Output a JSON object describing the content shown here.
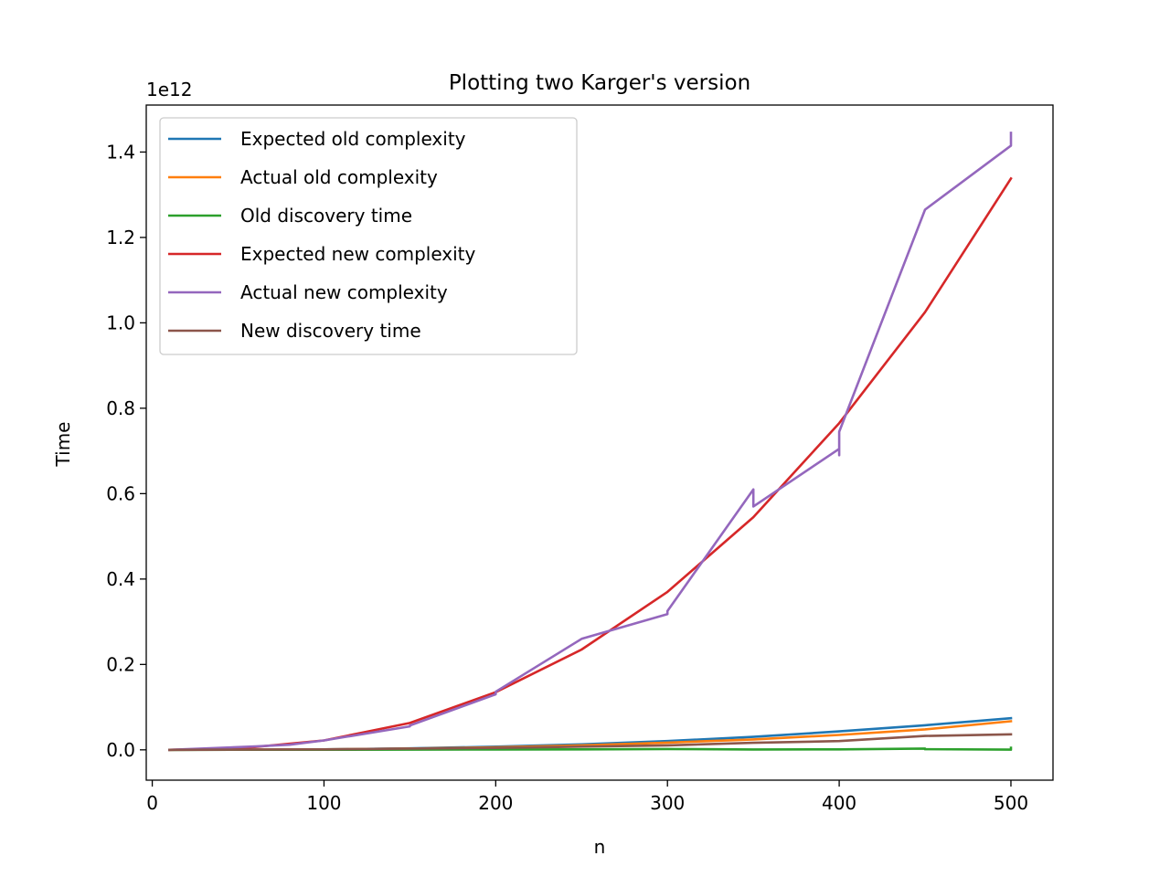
{
  "chart_data": {
    "type": "line",
    "title": "Plotting two Karger's version",
    "xlabel": "n",
    "ylabel": "Time",
    "y_offset_label": "1e12",
    "xlim": [
      -3.5,
      524.5
    ],
    "ylim": [
      -0.071,
      1.51
    ],
    "xticks": [
      0,
      100,
      200,
      300,
      400,
      500
    ],
    "yticks": [
      0.0,
      0.2,
      0.4,
      0.6,
      0.8,
      1.0,
      1.2,
      1.4
    ],
    "xtick_labels": [
      "0",
      "100",
      "200",
      "300",
      "400",
      "500"
    ],
    "ytick_labels": [
      "0.0",
      "0.2",
      "0.4",
      "0.6",
      "0.8",
      "1.0",
      "1.2",
      "1.4"
    ],
    "grid": false,
    "legend_position": "upper-left",
    "series": [
      {
        "name": "Expected old complexity",
        "color": "#1f77b4",
        "points": [
          [
            10,
            0.0
          ],
          [
            50,
            0.0002
          ],
          [
            100,
            0.001
          ],
          [
            150,
            0.0035
          ],
          [
            200,
            0.0075
          ],
          [
            250,
            0.0128
          ],
          [
            300,
            0.0205
          ],
          [
            350,
            0.0305
          ],
          [
            400,
            0.0432
          ],
          [
            450,
            0.0575
          ],
          [
            500,
            0.074
          ]
        ]
      },
      {
        "name": "Actual old complexity",
        "color": "#ff7f0e",
        "points": [
          [
            10,
            0.0
          ],
          [
            50,
            0.0002
          ],
          [
            100,
            0.001
          ],
          [
            150,
            0.003
          ],
          [
            200,
            0.006
          ],
          [
            250,
            0.0105
          ],
          [
            300,
            0.017
          ],
          [
            350,
            0.0245
          ],
          [
            400,
            0.035
          ],
          [
            450,
            0.048
          ],
          [
            500,
            0.067
          ]
        ]
      },
      {
        "name": "Old discovery time",
        "color": "#2ca02c",
        "points": [
          [
            10,
            0.0
          ],
          [
            100,
            0.0002
          ],
          [
            200,
            0.0008
          ],
          [
            250,
            0.0012
          ],
          [
            300,
            0.002
          ],
          [
            350,
            0.0008
          ],
          [
            400,
            0.0012
          ],
          [
            450,
            0.003
          ],
          [
            450,
            0.0015
          ],
          [
            500,
            0.0005
          ],
          [
            500,
            0.005
          ]
        ]
      },
      {
        "name": "Expected new complexity",
        "color": "#d62728",
        "points": [
          [
            10,
            0.0
          ],
          [
            50,
            0.003
          ],
          [
            100,
            0.022
          ],
          [
            150,
            0.063
          ],
          [
            200,
            0.135
          ],
          [
            250,
            0.235
          ],
          [
            300,
            0.37
          ],
          [
            350,
            0.545
          ],
          [
            400,
            0.765
          ],
          [
            450,
            1.025
          ],
          [
            500,
            1.338
          ]
        ]
      },
      {
        "name": "Actual new complexity",
        "color": "#9467bd",
        "points": [
          [
            10,
            0.0
          ],
          [
            60,
            0.008
          ],
          [
            80,
            0.012
          ],
          [
            100,
            0.022
          ],
          [
            150,
            0.055
          ],
          [
            150,
            0.057
          ],
          [
            200,
            0.13
          ],
          [
            200,
            0.136
          ],
          [
            250,
            0.26
          ],
          [
            300,
            0.318
          ],
          [
            300,
            0.325
          ],
          [
            350,
            0.61
          ],
          [
            350,
            0.57
          ],
          [
            400,
            0.705
          ],
          [
            400,
            0.69
          ],
          [
            400,
            0.745
          ],
          [
            450,
            1.265
          ],
          [
            500,
            1.415
          ],
          [
            500,
            1.445
          ]
        ]
      },
      {
        "name": "New discovery time",
        "color": "#8c564b",
        "points": [
          [
            10,
            0.0
          ],
          [
            100,
            0.001
          ],
          [
            150,
            0.003
          ],
          [
            200,
            0.0045
          ],
          [
            250,
            0.0075
          ],
          [
            300,
            0.0105
          ],
          [
            350,
            0.0165
          ],
          [
            400,
            0.0205
          ],
          [
            450,
            0.0325
          ],
          [
            500,
            0.0365
          ]
        ]
      }
    ]
  }
}
